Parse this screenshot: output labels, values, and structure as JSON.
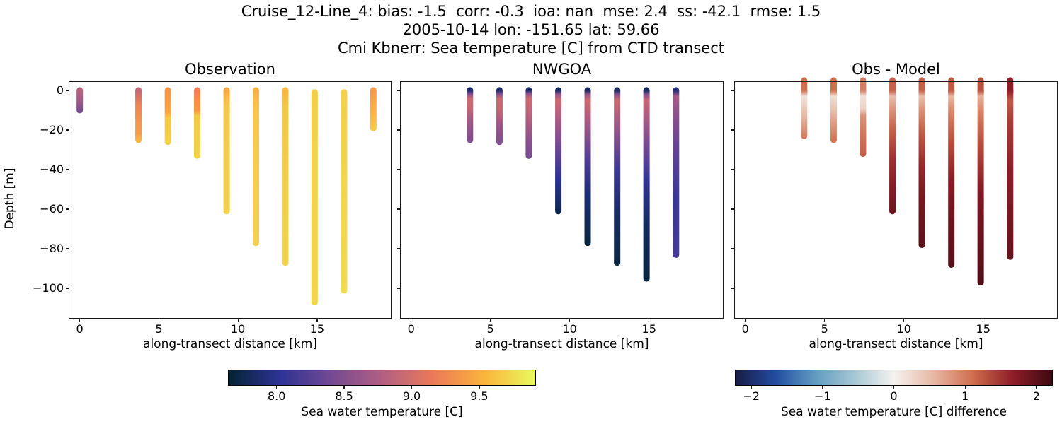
{
  "title": {
    "line1": "Cruise_12-Line_4: bias: -1.5  corr: -0.3  ioa: nan  mse: 2.4  ss: -42.1  rmse: 1.5",
    "line2": "2005-10-14 lon: -151.65 lat: 59.66",
    "line3": "Cmi Kbnerr: Sea temperature [C] from CTD transect"
  },
  "chart_data": {
    "type": "scatter",
    "description": "Three-panel CTD transect section plot: observed sea temperature, NWGOA model, and obs-minus-model difference, colored vertical profiles vs depth",
    "shared_axes": {
      "xlabel": "along-transect distance [km]",
      "ylabel": "Depth [m]",
      "xlim": [
        -0.7,
        19.7
      ],
      "ylim": [
        -115.3,
        4.6
      ],
      "x_ticks": [
        0,
        5,
        10,
        15
      ],
      "x_tick_labels": [
        "0",
        "5",
        "10",
        "15"
      ],
      "y_ticks": [
        0,
        -20,
        -40,
        -60,
        -80,
        -100
      ],
      "y_tick_labels": [
        "0",
        "−20",
        "−40",
        "−60",
        "−80",
        "−100"
      ]
    },
    "colormaps": {
      "thermal": [
        "#042333",
        "#2c3395",
        "#744992",
        "#b15f82",
        "#eb7958",
        "#fbb43d",
        "#e8fa5b"
      ],
      "balance": [
        "#181c43",
        "#234ba0",
        "#5f9bc1",
        "#a5c7d4",
        "#f5f2f0",
        "#e7b9a4",
        "#cf6d4e",
        "#8f1d27",
        "#3c0912"
      ]
    },
    "colorbars": [
      {
        "cmap": "thermal",
        "vmin": 7.64,
        "vmax": 9.92,
        "ticks": [
          8.0,
          8.5,
          9.0,
          9.5
        ],
        "tick_labels": [
          "8.0",
          "8.5",
          "9.0",
          "9.5"
        ],
        "label": "Sea water temperature [C]"
      },
      {
        "cmap": "balance",
        "vmin": -2.23,
        "vmax": 2.23,
        "ticks": [
          -2,
          -1,
          0,
          1,
          2
        ],
        "tick_labels": [
          "−2",
          "−1",
          "0",
          "1",
          "2"
        ],
        "label": "Sea water temperature [C] difference"
      }
    ],
    "panels": [
      {
        "title": "Observation",
        "cmap": "thermal",
        "top_overflow": false,
        "profiles": [
          {
            "x": 0.0,
            "points": [
              [
                0,
                8.82
              ],
              [
                -4,
                8.72
              ],
              [
                -7,
                8.6
              ],
              [
                -10,
                8.45
              ]
            ]
          },
          {
            "x": 3.71,
            "points": [
              [
                0,
                8.9
              ],
              [
                -3,
                9.05
              ],
              [
                -8,
                9.25
              ],
              [
                -16,
                9.35
              ],
              [
                -22,
                9.4
              ],
              [
                -25,
                9.55
              ]
            ]
          },
          {
            "x": 5.57,
            "points": [
              [
                0,
                9.35
              ],
              [
                -6,
                9.4
              ],
              [
                -11,
                9.45
              ],
              [
                -14,
                9.65
              ],
              [
                -26,
                9.7
              ]
            ]
          },
          {
            "x": 7.42,
            "points": [
              [
                0,
                9.2
              ],
              [
                -5,
                9.3
              ],
              [
                -10,
                9.35
              ],
              [
                -13,
                9.65
              ],
              [
                -33,
                9.7
              ]
            ]
          },
          {
            "x": 9.28,
            "points": [
              [
                0,
                9.45
              ],
              [
                -3,
                9.55
              ],
              [
                -8,
                9.65
              ],
              [
                -61,
                9.7
              ]
            ]
          },
          {
            "x": 11.13,
            "points": [
              [
                0,
                9.5
              ],
              [
                -5,
                9.6
              ],
              [
                -10,
                9.65
              ],
              [
                -40,
                9.68
              ],
              [
                -77,
                9.7
              ]
            ]
          },
          {
            "x": 12.99,
            "points": [
              [
                0,
                9.55
              ],
              [
                -8,
                9.65
              ],
              [
                -50,
                9.7
              ],
              [
                -87,
                9.72
              ]
            ]
          },
          {
            "x": 14.84,
            "points": [
              [
                -1,
                9.68
              ],
              [
                -30,
                9.7
              ],
              [
                -107,
                9.72
              ]
            ]
          },
          {
            "x": 16.7,
            "points": [
              [
                -1,
                9.7
              ],
              [
                -60,
                9.73
              ],
              [
                -101,
                9.75
              ]
            ]
          },
          {
            "x": 18.55,
            "points": [
              [
                0,
                9.38
              ],
              [
                -5,
                9.45
              ],
              [
                -12,
                9.55
              ],
              [
                -19,
                9.65
              ]
            ]
          }
        ]
      },
      {
        "title": "NWGOA",
        "cmap": "thermal",
        "top_overflow": false,
        "profiles": [
          {
            "x": 3.71,
            "points": [
              [
                0,
                7.85
              ],
              [
                -1.5,
                8.4
              ],
              [
                -4,
                8.95
              ],
              [
                -9,
                8.9
              ],
              [
                -15,
                8.7
              ],
              [
                -21,
                8.55
              ],
              [
                -25,
                8.5
              ]
            ]
          },
          {
            "x": 5.57,
            "points": [
              [
                0,
                7.85
              ],
              [
                -1.5,
                8.4
              ],
              [
                -4,
                8.95
              ],
              [
                -10,
                8.9
              ],
              [
                -16,
                8.7
              ],
              [
                -22,
                8.55
              ],
              [
                -26,
                8.5
              ]
            ]
          },
          {
            "x": 7.42,
            "points": [
              [
                0,
                7.85
              ],
              [
                -1.5,
                8.5
              ],
              [
                -4,
                8.95
              ],
              [
                -11,
                8.85
              ],
              [
                -18,
                8.7
              ],
              [
                -27,
                8.5
              ],
              [
                -33,
                8.45
              ]
            ]
          },
          {
            "x": 9.28,
            "points": [
              [
                0,
                7.8
              ],
              [
                -2,
                8.6
              ],
              [
                -5,
                8.95
              ],
              [
                -12,
                8.8
              ],
              [
                -22,
                8.55
              ],
              [
                -32,
                8.3
              ],
              [
                -45,
                8.0
              ],
              [
                -61,
                7.75
              ]
            ]
          },
          {
            "x": 11.13,
            "points": [
              [
                0,
                7.8
              ],
              [
                -2,
                8.6
              ],
              [
                -5,
                8.95
              ],
              [
                -13,
                8.8
              ],
              [
                -24,
                8.5
              ],
              [
                -36,
                8.2
              ],
              [
                -52,
                7.9
              ],
              [
                -77,
                7.7
              ]
            ]
          },
          {
            "x": 12.99,
            "points": [
              [
                0,
                7.8
              ],
              [
                -2,
                8.5
              ],
              [
                -5,
                8.95
              ],
              [
                -14,
                8.75
              ],
              [
                -26,
                8.45
              ],
              [
                -40,
                8.1
              ],
              [
                -60,
                7.85
              ],
              [
                -87,
                7.7
              ]
            ]
          },
          {
            "x": 14.84,
            "points": [
              [
                0,
                7.8
              ],
              [
                -2,
                8.5
              ],
              [
                -5,
                8.9
              ],
              [
                -15,
                8.7
              ],
              [
                -28,
                8.4
              ],
              [
                -45,
                8.05
              ],
              [
                -70,
                7.8
              ],
              [
                -95,
                7.7
              ]
            ]
          },
          {
            "x": 16.7,
            "points": [
              [
                0,
                7.9
              ],
              [
                -3,
                8.7
              ],
              [
                -12,
                8.55
              ],
              [
                -30,
                8.3
              ],
              [
                -55,
                8.1
              ],
              [
                -83,
                8.15
              ]
            ]
          }
        ]
      },
      {
        "title": "Obs - Model",
        "cmap": "balance",
        "top_overflow": true,
        "profiles": [
          {
            "x": 3.71,
            "points": [
              [
                0,
                1.1
              ],
              [
                -3,
                0.15
              ],
              [
                -8,
                0.35
              ],
              [
                -14,
                0.6
              ],
              [
                -20,
                0.85
              ],
              [
                -23,
                1.0
              ]
            ]
          },
          {
            "x": 5.57,
            "points": [
              [
                0,
                1.1
              ],
              [
                -3,
                0.2
              ],
              [
                -9,
                0.45
              ],
              [
                -16,
                0.75
              ],
              [
                -22,
                0.95
              ],
              [
                -25,
                1.05
              ]
            ]
          },
          {
            "x": 7.42,
            "points": [
              [
                0,
                1.0
              ],
              [
                -3,
                0.15
              ],
              [
                -9,
                0.3
              ],
              [
                -13,
                0.85
              ],
              [
                -22,
                1.05
              ],
              [
                -32,
                1.2
              ]
            ]
          },
          {
            "x": 9.28,
            "points": [
              [
                0,
                1.2
              ],
              [
                -3,
                0.5
              ],
              [
                -10,
                0.85
              ],
              [
                -20,
                1.2
              ],
              [
                -35,
                1.55
              ],
              [
                -50,
                1.75
              ],
              [
                -61,
                1.9
              ]
            ]
          },
          {
            "x": 11.13,
            "points": [
              [
                0,
                1.2
              ],
              [
                -3,
                0.5
              ],
              [
                -10,
                0.85
              ],
              [
                -22,
                1.25
              ],
              [
                -38,
                1.6
              ],
              [
                -55,
                1.85
              ],
              [
                -78,
                2.0
              ]
            ]
          },
          {
            "x": 12.99,
            "points": [
              [
                0,
                1.25
              ],
              [
                -3,
                0.55
              ],
              [
                -10,
                0.9
              ],
              [
                -25,
                1.3
              ],
              [
                -45,
                1.7
              ],
              [
                -65,
                1.9
              ],
              [
                -88,
                2.05
              ]
            ]
          },
          {
            "x": 14.84,
            "points": [
              [
                0,
                1.3
              ],
              [
                -3,
                0.6
              ],
              [
                -12,
                1.0
              ],
              [
                -28,
                1.35
              ],
              [
                -50,
                1.75
              ],
              [
                -75,
                1.95
              ],
              [
                -97,
                2.1
              ]
            ]
          },
          {
            "x": 16.7,
            "points": [
              [
                0,
                1.7
              ],
              [
                -5,
                1.25
              ],
              [
                -15,
                1.45
              ],
              [
                -40,
                1.7
              ],
              [
                -65,
                1.85
              ],
              [
                -84,
                1.95
              ]
            ]
          }
        ]
      }
    ]
  }
}
